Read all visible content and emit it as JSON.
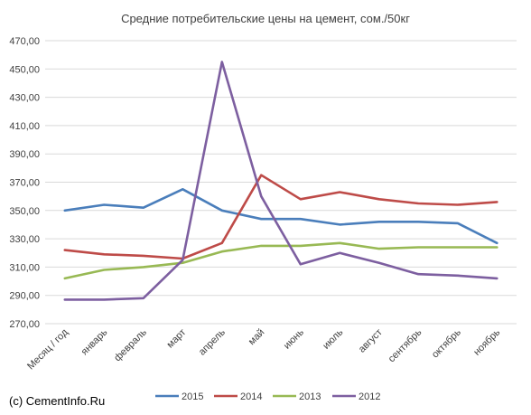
{
  "credit": "(c) CementInfo.Ru",
  "chart_data": {
    "type": "line",
    "title": "Средние потребительские цены на цемент, сом./50кг",
    "categories": [
      "Месяц / год",
      "январь",
      "февраль",
      "март",
      "апрель",
      "май",
      "июнь",
      "июль",
      "август",
      "сентябрь",
      "октябрь",
      "ноябрь"
    ],
    "y_ticks": [
      "270,00",
      "290,00",
      "310,00",
      "330,00",
      "350,00",
      "370,00",
      "390,00",
      "410,00",
      "430,00",
      "450,00",
      "470,00"
    ],
    "ylim": [
      270,
      470
    ],
    "grid": true,
    "legend_position": "bottom",
    "series": [
      {
        "name": "2015",
        "color": "#4a7ebb",
        "values": [
          350,
          354,
          352,
          365,
          350,
          344,
          344,
          340,
          342,
          342,
          341,
          327
        ]
      },
      {
        "name": "2014",
        "color": "#be4b48",
        "values": [
          322,
          319,
          318,
          316,
          327,
          375,
          358,
          363,
          358,
          355,
          354,
          356
        ]
      },
      {
        "name": "2013",
        "color": "#98b954",
        "values": [
          302,
          308,
          310,
          313,
          321,
          325,
          325,
          327,
          323,
          324,
          324,
          324
        ]
      },
      {
        "name": "2012",
        "color": "#7d5fa0",
        "values": [
          287,
          287,
          288,
          315,
          455,
          360,
          312,
          320,
          313,
          305,
          304,
          302
        ]
      }
    ]
  }
}
